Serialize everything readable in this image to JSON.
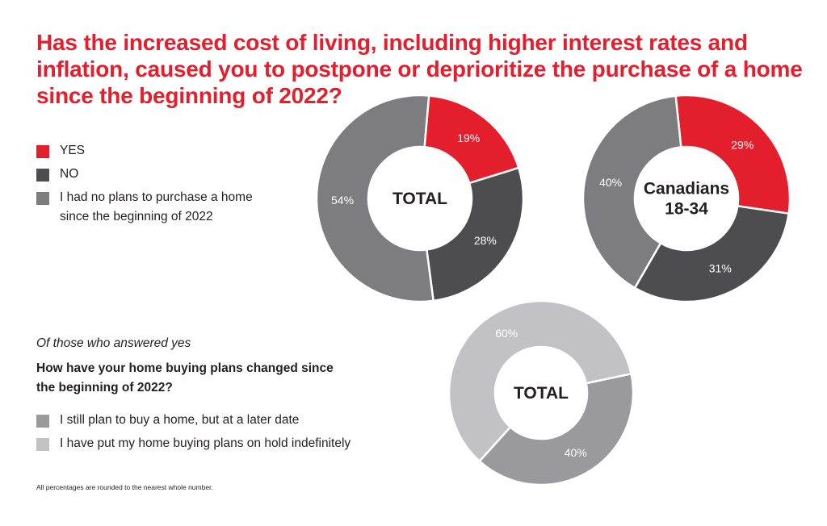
{
  "title_lines": [
    "Has the increased cost of living, including higher interest rates and",
    "inflation, caused you to postpone or deprioritize the purchase of a home",
    "since the beginning of 2022?"
  ],
  "legend_main": [
    {
      "lines": [
        "YES"
      ],
      "color": "#e31e2d"
    },
    {
      "lines": [
        "NO"
      ],
      "color": "#4d4d4f"
    },
    {
      "lines": [
        "I had no plans to purchase a home",
        "since the beginning of 2022"
      ],
      "color": "#7d7d7f"
    }
  ],
  "subquestion_intro": "Of those who answered yes",
  "subquestion_lines": [
    "How have your home buying plans changed since",
    "the beginning of 2022?"
  ],
  "legend_sub": [
    {
      "lines": [
        "I still plan to buy a home, but at a later date"
      ],
      "color": "#9a9a9c"
    },
    {
      "lines": [
        "I have put my home buying plans on hold indefinitely"
      ],
      "color": "#c2c2c4"
    }
  ],
  "footnote": "All percentages are rounded to the nearest whole number.",
  "chart_data": [
    {
      "type": "pie",
      "center_label": [
        "TOTAL"
      ],
      "categories": [
        "YES",
        "NO",
        "I had no plans to purchase a home since the beginning of 2022"
      ],
      "values": [
        19,
        28,
        54
      ],
      "labels": [
        "19%",
        "28%",
        "54%"
      ],
      "colors": [
        "#e31e2d",
        "#4d4d4f",
        "#7d7d7f"
      ]
    },
    {
      "type": "pie",
      "center_label": [
        "Canadians",
        "18-34"
      ],
      "categories": [
        "YES",
        "NO",
        "I had no plans to purchase a home since the beginning of 2022"
      ],
      "values": [
        29,
        31,
        40
      ],
      "labels": [
        "29%",
        "31%",
        "40%"
      ],
      "colors": [
        "#e31e2d",
        "#4d4d4f",
        "#7d7d7f"
      ]
    },
    {
      "type": "pie",
      "center_label": [
        "TOTAL"
      ],
      "categories": [
        "I still plan to buy a home, but at a later date",
        "I have put my home buying plans on hold indefinitely"
      ],
      "values": [
        40,
        60
      ],
      "labels": [
        "40%",
        "60%"
      ],
      "colors": [
        "#9a9a9c",
        "#c2c2c4"
      ]
    }
  ]
}
